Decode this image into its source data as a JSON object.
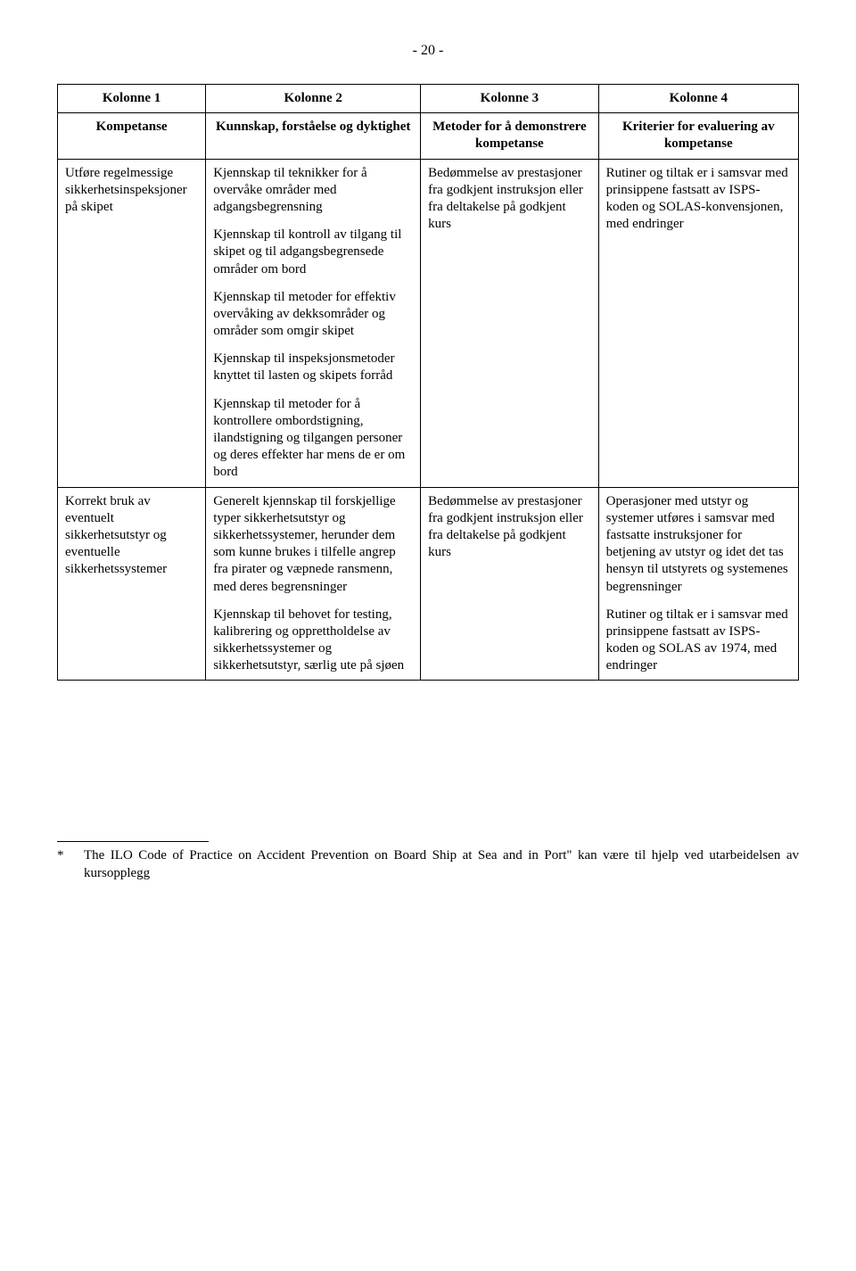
{
  "pageNumber": "- 20 -",
  "table": {
    "header1": {
      "c1": "Kolonne 1",
      "c2": "Kolonne 2",
      "c3": "Kolonne 3",
      "c4": "Kolonne 4"
    },
    "header2": {
      "c1": "Kompetanse",
      "c2": "Kunnskap, forståelse og dyktighet",
      "c3": "Metoder for å demonstrere kompetanse",
      "c4": "Kriterier for evaluering av kompetanse"
    },
    "rows": [
      {
        "c1": [
          "Utføre regelmessige sikkerhetsinspeksjoner på skipet"
        ],
        "c2": [
          "Kjennskap til teknikker for å overvåke områder med adgangsbegrensning",
          "Kjennskap til kontroll av tilgang til skipet og til adgangsbegrensede områder om bord",
          "Kjennskap til metoder for effektiv overvåking av dekksområder og områder som omgir skipet",
          "Kjennskap til inspeksjonsmetoder knyttet til lasten og skipets forråd",
          "Kjennskap til metoder for å kontrollere ombordstigning, ilandstigning og tilgangen personer og deres effekter har mens de er om bord"
        ],
        "c3": [
          "Bedømmelse av prestasjoner fra godkjent instruksjon eller fra deltakelse på godkjent kurs"
        ],
        "c4": [
          "Rutiner og tiltak er i samsvar med prinsippene fastsatt av ISPS-koden og SOLAS-konvensjonen, med endringer"
        ]
      },
      {
        "c1": [
          "Korrekt bruk av eventuelt sikkerhetsutstyr og eventuelle sikkerhetssystemer"
        ],
        "c2": [
          "Generelt kjennskap til forskjellige typer sikkerhetsutstyr og sikkerhetssystemer, herunder dem som kunne brukes i tilfelle angrep fra pirater og væpnede ransmenn, med deres begrensninger",
          "Kjennskap til behovet for testing, kalibrering og opprettholdelse av sikkerhetssystemer og sikkerhetsutstyr, særlig ute på sjøen"
        ],
        "c3": [
          "Bedømmelse av prestasjoner fra godkjent instruksjon eller fra deltakelse på godkjent kurs"
        ],
        "c4": [
          "Operasjoner med utstyr og systemer utføres i samsvar med fastsatte instruksjoner for betjening av utstyr og idet det tas hensyn til utstyrets og systemenes begrensninger",
          "Rutiner og tiltak er i samsvar med prinsippene fastsatt av ISPS-koden og SOLAS av 1974, med endringer"
        ]
      }
    ]
  },
  "footnote": {
    "marker": "*",
    "text": "The ILO Code of Practice on Accident Prevention on Board Ship at Sea and in Port\" kan være til hjelp ved utarbeidelsen av kursopplegg"
  }
}
